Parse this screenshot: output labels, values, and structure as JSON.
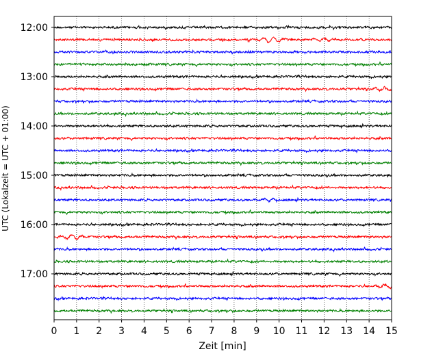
{
  "chart_data": {
    "type": "line",
    "title": "",
    "xlabel": "Zeit  [min]",
    "ylabel": "UTC (Lokalzeit = UTC + 01:00)",
    "xlim": [
      0,
      15
    ],
    "x_ticks": [
      0,
      1,
      2,
      3,
      4,
      5,
      6,
      7,
      8,
      9,
      10,
      11,
      12,
      13,
      14,
      15
    ],
    "x_tick_labels": [
      "0",
      "1",
      "2",
      "3",
      "4",
      "5",
      "6",
      "7",
      "8",
      "9",
      "10",
      "11",
      "12",
      "13",
      "14",
      "15"
    ],
    "y_tick_labels": [
      "12:00",
      "13:00",
      "14:00",
      "15:00",
      "16:00",
      "17:00"
    ],
    "y_tick_rows": [
      0,
      4,
      8,
      12,
      16,
      20
    ],
    "grid": "vertical-dotted",
    "line_colors": [
      "#000000",
      "#ff0000",
      "#0000ff",
      "#008000"
    ],
    "series": [
      {
        "start": "12:00",
        "color": "#000000"
      },
      {
        "start": "12:15",
        "color": "#ff0000",
        "events": [
          {
            "t": 9.7,
            "amp": 0.9
          },
          {
            "t": 12.0,
            "amp": 0.5
          }
        ]
      },
      {
        "start": "12:30",
        "color": "#0000ff"
      },
      {
        "start": "12:45",
        "color": "#008000"
      },
      {
        "start": "13:00",
        "color": "#000000"
      },
      {
        "start": "13:15",
        "color": "#ff0000",
        "events": [
          {
            "t": 14.6,
            "amp": 0.6
          }
        ]
      },
      {
        "start": "13:30",
        "color": "#0000ff"
      },
      {
        "start": "13:45",
        "color": "#008000"
      },
      {
        "start": "14:00",
        "color": "#000000"
      },
      {
        "start": "14:15",
        "color": "#ff0000"
      },
      {
        "start": "14:30",
        "color": "#0000ff"
      },
      {
        "start": "14:45",
        "color": "#008000"
      },
      {
        "start": "15:00",
        "color": "#000000"
      },
      {
        "start": "15:15",
        "color": "#ff0000"
      },
      {
        "start": "15:30",
        "color": "#0000ff",
        "events": [
          {
            "t": 9.5,
            "amp": 0.5
          }
        ]
      },
      {
        "start": "15:45",
        "color": "#008000"
      },
      {
        "start": "16:00",
        "color": "#000000"
      },
      {
        "start": "16:15",
        "color": "#ff0000",
        "events": [
          {
            "t": 0.8,
            "amp": 0.7
          }
        ]
      },
      {
        "start": "16:30",
        "color": "#0000ff"
      },
      {
        "start": "16:45",
        "color": "#008000"
      },
      {
        "start": "17:00",
        "color": "#000000"
      },
      {
        "start": "17:15",
        "color": "#ff0000",
        "events": [
          {
            "t": 14.8,
            "amp": 0.6
          }
        ]
      },
      {
        "start": "17:30",
        "color": "#0000ff"
      },
      {
        "start": "17:45",
        "color": "#008000"
      }
    ]
  }
}
